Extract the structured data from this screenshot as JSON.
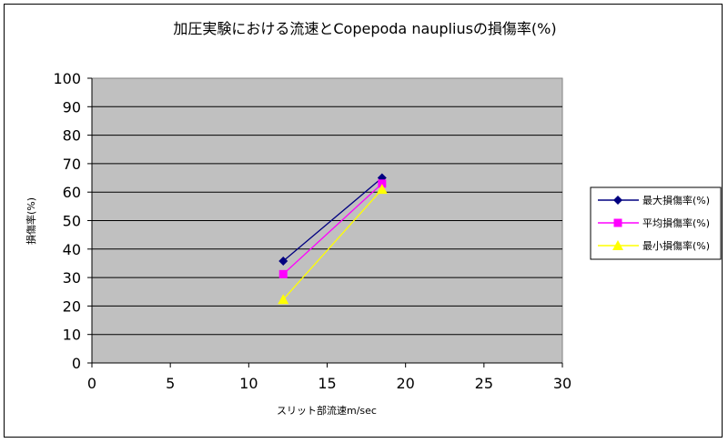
{
  "chart_data": {
    "type": "line",
    "title": "加圧実験における流速とCopepoda naupliusの損傷率(%)",
    "xlabel": "スリット部流速m/sec",
    "ylabel": "損傷率(%)",
    "xlim": [
      0,
      30
    ],
    "ylim": [
      0,
      100
    ],
    "x_ticks": [
      "0",
      "5",
      "10",
      "15",
      "20",
      "25",
      "30"
    ],
    "y_ticks": [
      "0",
      "10",
      "20",
      "30",
      "40",
      "50",
      "60",
      "70",
      "80",
      "90",
      "100"
    ],
    "grid": true,
    "legend_position": "right",
    "plot_background": "#c0c0c0",
    "series": [
      {
        "name": "最大損傷率(%)",
        "color": "#000080",
        "marker": "diamond",
        "x": [
          12.2,
          18.5
        ],
        "y": [
          35.8,
          65.0
        ]
      },
      {
        "name": "平均損傷率(%)",
        "color": "#ff00ff",
        "marker": "square",
        "x": [
          12.2,
          18.5
        ],
        "y": [
          31.2,
          63.0
        ]
      },
      {
        "name": "最小損傷率(%)",
        "color": "#ffff00",
        "marker": "triangle",
        "x": [
          12.2,
          18.5
        ],
        "y": [
          22.3,
          61.0
        ]
      }
    ]
  }
}
